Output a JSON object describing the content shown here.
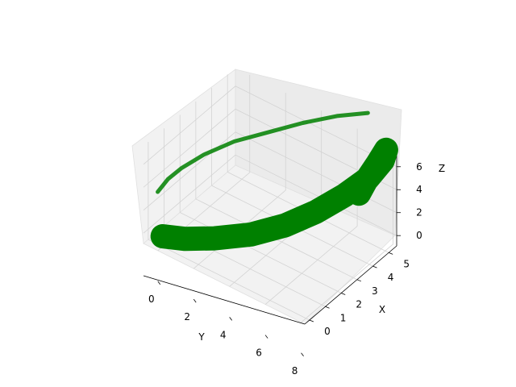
{
  "chart_data": {
    "type": "line3d",
    "title": "",
    "xlabel": "X",
    "ylabel": "Y",
    "zlabel": "Z",
    "xlim": [
      -0.3,
      5.5
    ],
    "ylim": [
      -0.8,
      8.2
    ],
    "zlim": [
      -0.9,
      7.6
    ],
    "x_ticks": [
      "0",
      "1",
      "2",
      "3",
      "4",
      "5"
    ],
    "y_ticks": [
      "0",
      "2",
      "4",
      "6",
      "8"
    ],
    "z_ticks": [
      "0",
      "2",
      "4",
      "6"
    ],
    "grid": true,
    "series": [
      {
        "color": "#008000",
        "style": "tube-projection-faint",
        "points": [
          {
            "x": 0.3,
            "y": 0.0,
            "z": 0.0
          },
          {
            "x": 0.5,
            "y": 0.4,
            "z": 1.2
          },
          {
            "x": 0.8,
            "y": 0.9,
            "z": 2.2
          },
          {
            "x": 1.4,
            "y": 1.6,
            "z": 3.2
          },
          {
            "x": 2.2,
            "y": 2.6,
            "z": 4.2
          },
          {
            "x": 3.0,
            "y": 3.8,
            "z": 5.0
          },
          {
            "x": 3.8,
            "y": 5.0,
            "z": 5.8
          },
          {
            "x": 4.6,
            "y": 6.2,
            "z": 6.4
          },
          {
            "x": 5.2,
            "y": 7.4,
            "z": 6.9
          }
        ]
      },
      {
        "color": "#008000",
        "style": "tube-thick",
        "points": [
          {
            "x": 0.0,
            "y": 0.0,
            "z": 0.0
          },
          {
            "x": 0.3,
            "y": 1.0,
            "z": 0.2
          },
          {
            "x": 0.8,
            "y": 2.2,
            "z": 0.6
          },
          {
            "x": 1.5,
            "y": 3.6,
            "z": 1.2
          },
          {
            "x": 2.3,
            "y": 4.8,
            "z": 2.0
          },
          {
            "x": 3.1,
            "y": 5.8,
            "z": 3.0
          },
          {
            "x": 4.0,
            "y": 6.6,
            "z": 4.0
          },
          {
            "x": 4.8,
            "y": 7.2,
            "z": 5.0
          },
          {
            "x": 5.3,
            "y": 7.6,
            "z": 6.3
          },
          {
            "x": 5.4,
            "y": 7.7,
            "z": 7.2
          },
          {
            "x": 5.2,
            "y": 7.4,
            "z": 6.0
          },
          {
            "x": 4.9,
            "y": 7.0,
            "z": 4.5
          },
          {
            "x": 4.7,
            "y": 6.8,
            "z": 3.5
          }
        ]
      }
    ]
  }
}
